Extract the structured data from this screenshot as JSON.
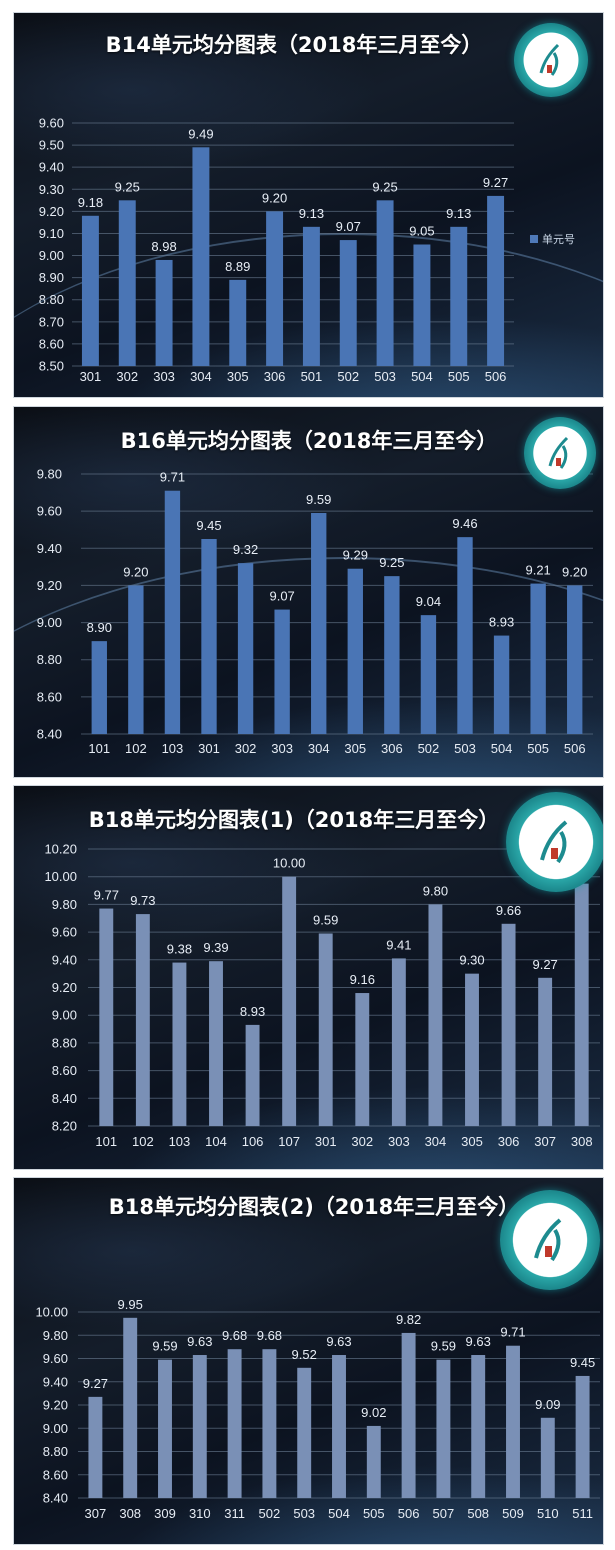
{
  "colors": {
    "bar_blue": "#4a75b5",
    "bar_slate": "#7a90b6",
    "label": "#e8eef6",
    "axis_text": "#e6ecf4",
    "grid": "#6a7d93",
    "logo_teal": "#1d8b8f"
  },
  "icons": [
    "school-emblem-icon"
  ],
  "chart_data": [
    {
      "type": "bar",
      "title": "B14单元均分图表（2018年三月至今）",
      "legend": "单元号",
      "legend_position": "right",
      "grid": true,
      "ylim": [
        8.5,
        9.6
      ],
      "ytick_step": 0.1,
      "categories": [
        "301",
        "302",
        "303",
        "304",
        "305",
        "306",
        "501",
        "502",
        "503",
        "504",
        "505",
        "506"
      ],
      "values": [
        9.18,
        9.25,
        8.98,
        9.49,
        8.89,
        9.2,
        9.13,
        9.07,
        9.25,
        9.05,
        9.13,
        9.27
      ]
    },
    {
      "type": "bar",
      "title": "B16单元均分图表（2018年三月至今）",
      "grid": true,
      "ylim": [
        8.4,
        9.8
      ],
      "ytick_step": 0.2,
      "categories": [
        "101",
        "102",
        "103",
        "301",
        "302",
        "303",
        "304",
        "305",
        "306",
        "502",
        "503",
        "504",
        "505",
        "506"
      ],
      "values": [
        8.9,
        9.2,
        9.71,
        9.45,
        9.32,
        9.07,
        9.59,
        9.29,
        9.25,
        9.04,
        9.46,
        8.93,
        9.21,
        9.2
      ]
    },
    {
      "type": "bar",
      "title": "B18单元均分图表(1)（2018年三月至今）",
      "grid": true,
      "ylim": [
        8.2,
        10.2
      ],
      "ytick_step": 0.2,
      "categories": [
        "101",
        "102",
        "103",
        "104",
        "106",
        "107",
        "301",
        "302",
        "303",
        "304",
        "305",
        "306",
        "307",
        "308"
      ],
      "values": [
        9.77,
        9.73,
        9.38,
        9.39,
        8.93,
        10.0,
        9.59,
        9.16,
        9.41,
        9.8,
        9.3,
        9.66,
        9.27,
        9.95
      ]
    },
    {
      "type": "bar",
      "title": "B18单元均分图表(2)（2018年三月至今）",
      "grid": true,
      "ylim": [
        8.4,
        10.0
      ],
      "ytick_step": 0.2,
      "categories": [
        "307",
        "308",
        "309",
        "310",
        "311",
        "502",
        "503",
        "504",
        "505",
        "506",
        "507",
        "508",
        "509",
        "510",
        "511"
      ],
      "values": [
        9.27,
        9.95,
        9.59,
        9.63,
        9.68,
        9.68,
        9.52,
        9.63,
        9.02,
        9.82,
        9.59,
        9.63,
        9.71,
        9.09,
        9.45
      ]
    }
  ]
}
